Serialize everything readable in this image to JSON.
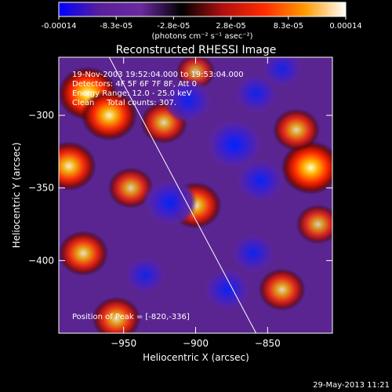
{
  "colorbar": {
    "tick_labels": [
      "-0.00014",
      "-8.3e-05",
      "-2.8e-05",
      "2.8e-05",
      "8.3e-05",
      "0.00014"
    ],
    "range": [
      -0.00014,
      0.00014
    ],
    "unit_label": "(photons cm⁻² s⁻¹ asec⁻²)",
    "colors": [
      "#0000ff",
      "#5a1f9a",
      "#6a2aa0",
      "#000000",
      "#b01010",
      "#ff2a00",
      "#ff9a00",
      "#ffffff"
    ]
  },
  "chart_data": {
    "type": "heatmap",
    "title": "Reconstructed RHESSI Image",
    "xlabel": "Heliocentric X (arcsec)",
    "ylabel": "Heliocentric Y (arcsec)",
    "xlim": [
      -995,
      -805
    ],
    "ylim": [
      -450,
      -260
    ],
    "x_ticks": [
      -950,
      -900,
      -850
    ],
    "y_ticks": [
      -300,
      -350,
      -400
    ],
    "info_lines": [
      "19-Nov-2003 19:52:04.000 to 19:53:04.000",
      "Detectors: 4F 5F 6F 7F 8F, Att 0",
      "Energy Range: 12.0 - 25.0 keV",
      "Clean     Total counts: 307."
    ],
    "peak_label": "Position of Peak = [-820,-336]",
    "peak": [
      -820,
      -336
    ],
    "limb_line": {
      "x": [
        -960,
        -858
      ],
      "y": [
        -260,
        -450
      ]
    },
    "blobs": [
      {
        "x": -975,
        "y": -285,
        "v": 1.0
      },
      {
        "x": -960,
        "y": -300,
        "v": 0.9
      },
      {
        "x": -988,
        "y": -335,
        "v": 0.85
      },
      {
        "x": -978,
        "y": -395,
        "v": 0.7
      },
      {
        "x": -945,
        "y": -350,
        "v": 0.55
      },
      {
        "x": -922,
        "y": -305,
        "v": 0.6
      },
      {
        "x": -900,
        "y": -362,
        "v": 0.75
      },
      {
        "x": -820,
        "y": -336,
        "v": 1.0
      },
      {
        "x": -830,
        "y": -310,
        "v": 0.6
      },
      {
        "x": -840,
        "y": -420,
        "v": 0.6
      },
      {
        "x": -955,
        "y": -440,
        "v": 0.65
      },
      {
        "x": -900,
        "y": -270,
        "v": 0.35
      },
      {
        "x": -815,
        "y": -375,
        "v": 0.5
      },
      {
        "x": -905,
        "y": -290,
        "v": -0.7
      },
      {
        "x": -873,
        "y": -320,
        "v": -1.0
      },
      {
        "x": -858,
        "y": -285,
        "v": -0.6
      },
      {
        "x": -855,
        "y": -345,
        "v": -0.75
      },
      {
        "x": -918,
        "y": -360,
        "v": -0.85
      },
      {
        "x": -860,
        "y": -395,
        "v": -0.6
      },
      {
        "x": -878,
        "y": -420,
        "v": -0.7
      },
      {
        "x": -935,
        "y": -410,
        "v": -0.5
      },
      {
        "x": -840,
        "y": -268,
        "v": -0.5
      }
    ]
  },
  "footer": {
    "timestamp": "29-May-2013 11:21"
  }
}
